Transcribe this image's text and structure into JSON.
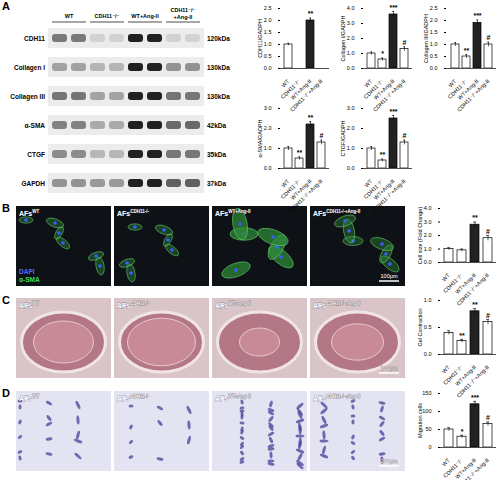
{
  "panels": [
    {
      "label": "A",
      "blot": {
        "groups": [
          "WT",
          "CDH11⁻/⁻",
          "WT+Ang-II",
          "CDH11⁻/⁻+Ang-II"
        ],
        "bands": [
          {
            "name": "CDH11",
            "size": "120kDa"
          },
          {
            "name": "Collagen I",
            "size": "130kDa"
          },
          {
            "name": "Collagen III",
            "size": "130kDa"
          },
          {
            "name": "α-SMA",
            "size": "42kDa"
          },
          {
            "name": "CTGF",
            "size": "35kDa"
          },
          {
            "name": "GAPDH",
            "size": "37kDa"
          }
        ]
      }
    },
    {
      "label": "B",
      "images": [
        {
          "base": "AFs",
          "sup": "WT"
        },
        {
          "base": "AFs",
          "sup": "CDH11-/-"
        },
        {
          "base": "AFs",
          "sup": "WT+Ang-II"
        },
        {
          "base": "AFs",
          "sup": "CDH11-/-+Ang-II"
        }
      ],
      "stain_labels": [
        "DAPI",
        "α-SMA"
      ],
      "scale_bar": "100μm"
    },
    {
      "label": "C",
      "images": [
        {
          "base": "AFs",
          "sup": "WT"
        },
        {
          "base": "AFs",
          "sup": "CDH11-/-"
        },
        {
          "base": "AFs",
          "sup": "WT+Ang-II"
        },
        {
          "base": "AFs",
          "sup": "CDH11-/-+Ang-II"
        }
      ],
      "scale_bar": "100μm"
    },
    {
      "label": "D",
      "images": [
        {
          "base": "AFs",
          "sup": "WT"
        },
        {
          "base": "AFs",
          "sup": "CDH11-/-"
        },
        {
          "base": "AFs",
          "sup": "WT+Ang-II"
        },
        {
          "base": "AFs",
          "sup": "CDH11-/-+Ang-II"
        }
      ],
      "scale_bar": "100μm"
    }
  ],
  "chart_data": [
    {
      "type": "bar",
      "ylabel": "CDH11/GADPH",
      "categories": [
        "WT",
        "CDH11⁻/⁻",
        "WT+Ang-II",
        "CDH11⁻/⁻+Ang-II"
      ],
      "values": [
        1.0,
        0,
        2.0,
        0
      ],
      "errors": [
        0.05,
        0,
        0.1,
        0
      ],
      "annotations": [
        null,
        null,
        "**",
        null
      ],
      "colors": [
        "#ffffff",
        "#ffffff",
        "#222222",
        "#ffffff"
      ],
      "ylim": [
        0,
        2.5
      ],
      "yticks": [
        0,
        0.5,
        1,
        1.5,
        2,
        2.5
      ]
    },
    {
      "type": "bar",
      "ylabel": "Collagen I/GADPH",
      "categories": [
        "WT",
        "CDH11⁻/⁻",
        "WT+Ang-II",
        "CDH11⁻/⁻+Ang-II"
      ],
      "values": [
        1.0,
        0.6,
        3.6,
        1.3
      ],
      "errors": [
        0.1,
        0.1,
        0.2,
        0.15
      ],
      "annotations": [
        null,
        "*",
        "***",
        "#"
      ],
      "colors": [
        "#ffffff",
        "#ffffff",
        "#222222",
        "#ffffff"
      ],
      "ylim": [
        0,
        4
      ],
      "yticks": [
        0,
        1,
        2,
        3,
        4
      ]
    },
    {
      "type": "bar",
      "ylabel": "Collagen III/GADPH",
      "categories": [
        "WT",
        "CDH11⁻/⁻",
        "WT+Ang-II",
        "CDH11⁻/⁻+Ang-II"
      ],
      "values": [
        1.0,
        0.5,
        1.9,
        1.0
      ],
      "errors": [
        0.08,
        0.08,
        0.12,
        0.1
      ],
      "annotations": [
        null,
        "**",
        "***",
        "#"
      ],
      "colors": [
        "#ffffff",
        "#ffffff",
        "#222222",
        "#ffffff"
      ],
      "ylim": [
        0,
        2.5
      ],
      "yticks": [
        0,
        0.5,
        1,
        1.5,
        2,
        2.5
      ]
    },
    {
      "type": "bar",
      "ylabel": "α-SMA/GADPH",
      "categories": [
        "WT",
        "CDH11⁻/⁻",
        "WT+Ang-II",
        "CDH11⁻/⁻+Ang-II"
      ],
      "values": [
        1.0,
        0.5,
        2.2,
        1.3
      ],
      "errors": [
        0.1,
        0.08,
        0.15,
        0.12
      ],
      "annotations": [
        null,
        "**",
        "**",
        "#"
      ],
      "colors": [
        "#ffffff",
        "#ffffff",
        "#222222",
        "#ffffff"
      ],
      "ylim": [
        0,
        3
      ],
      "yticks": [
        0,
        1,
        2,
        3
      ]
    },
    {
      "type": "bar",
      "ylabel": "CTGF/GADPH",
      "categories": [
        "WT",
        "CDH11⁻/⁻",
        "WT+Ang-II",
        "CDH11⁻/⁻+Ang-II"
      ],
      "values": [
        1.0,
        0.4,
        2.5,
        1.3
      ],
      "errors": [
        0.1,
        0.07,
        0.15,
        0.12
      ],
      "annotations": [
        null,
        "**",
        "***",
        "#"
      ],
      "colors": [
        "#ffffff",
        "#ffffff",
        "#222222",
        "#ffffff"
      ],
      "ylim": [
        0,
        3
      ],
      "yticks": [
        0,
        1,
        2,
        3
      ]
    },
    {
      "type": "bar",
      "ylabel": "Cell size (Fold Change)",
      "categories": [
        "WT",
        "CDH11⁻/⁻",
        "WT+Ang-II",
        "CDH11⁻/⁻+Ang-II"
      ],
      "values": [
        1.0,
        0.9,
        2.8,
        1.8
      ],
      "errors": [
        0.1,
        0.1,
        0.2,
        0.2
      ],
      "annotations": [
        null,
        null,
        "**",
        "#"
      ],
      "colors": [
        "#ffffff",
        "#ffffff",
        "#222222",
        "#ffffff"
      ],
      "ylim": [
        0,
        4
      ],
      "yticks": [
        0,
        1,
        2,
        3,
        4
      ]
    },
    {
      "type": "bar",
      "ylabel": "Gel Contraction",
      "categories": [
        "WT",
        "CDH11⁻/⁻",
        "WT+Ang-II",
        "CDH11⁻/⁻+Ang-II"
      ],
      "values": [
        0.4,
        0.25,
        0.8,
        0.6
      ],
      "errors": [
        0.04,
        0.03,
        0.05,
        0.05
      ],
      "annotations": [
        null,
        "**",
        "**",
        "#"
      ],
      "colors": [
        "#ffffff",
        "#ffffff",
        "#222222",
        "#ffffff"
      ],
      "ylim": [
        0,
        1
      ],
      "yticks": [
        0,
        0.5,
        1
      ]
    },
    {
      "type": "bar",
      "ylabel": "Migration cells",
      "categories": [
        "WT",
        "CDH11⁻/⁻",
        "WT+Ang-II",
        "CDH11⁻/⁻+Ang-II"
      ],
      "values": [
        50,
        30,
        120,
        65
      ],
      "errors": [
        5,
        4,
        8,
        6
      ],
      "annotations": [
        null,
        "*",
        "***",
        "#"
      ],
      "colors": [
        "#ffffff",
        "#ffffff",
        "#222222",
        "#ffffff"
      ],
      "ylim": [
        0,
        150
      ],
      "yticks": [
        0,
        50,
        100,
        150
      ]
    }
  ]
}
